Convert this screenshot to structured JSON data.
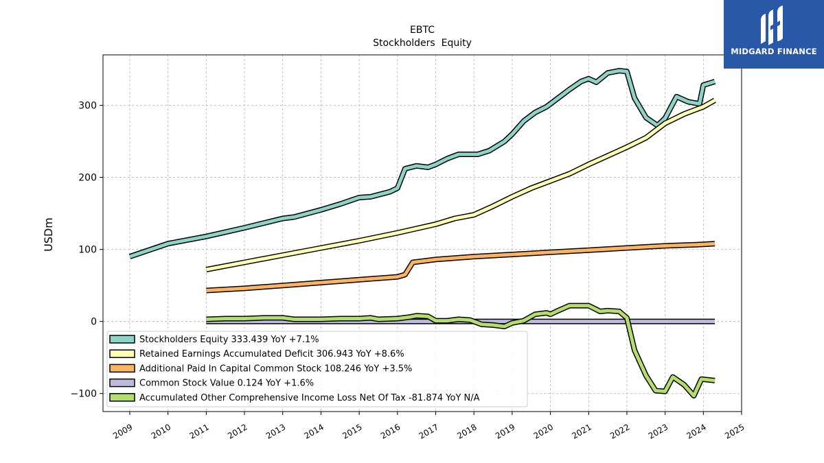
{
  "logo": {
    "text": "MIDGARD FINANCE",
    "icon": "midgard-m-logo-icon",
    "color": "#2a58a8"
  },
  "chart_data": {
    "type": "line",
    "title": "EBTC",
    "subtitle": "Stockholders  Equity",
    "ylabel": "USDm",
    "xlabel": "",
    "xlim": [
      2008.3,
      2025.0
    ],
    "ylim": [
      -125,
      370
    ],
    "x_ticks": [
      "2009",
      "2010",
      "2011",
      "2012",
      "2013",
      "2014",
      "2015",
      "2016",
      "2017",
      "2018",
      "2019",
      "2020",
      "2021",
      "2022",
      "2023",
      "2024",
      "2025"
    ],
    "y_ticks": [
      -100,
      0,
      100,
      200,
      300
    ],
    "y_tick_labels": [
      "−100",
      "0",
      "100",
      "200",
      "300"
    ],
    "grid": true,
    "legend_position": "lower-left",
    "series": [
      {
        "name": "Stockholders Equity",
        "legend": "Stockholders Equity  333.439 YoY +7.1%",
        "color": "#8dd3c7",
        "points": [
          [
            2009.0,
            90
          ],
          [
            2010.0,
            108
          ],
          [
            2011.0,
            118
          ],
          [
            2012.0,
            130
          ],
          [
            2013.0,
            143
          ],
          [
            2013.3,
            145
          ],
          [
            2014.0,
            155
          ],
          [
            2014.5,
            163
          ],
          [
            2015.0,
            172
          ],
          [
            2015.3,
            173
          ],
          [
            2015.8,
            180
          ],
          [
            2016.0,
            185
          ],
          [
            2016.2,
            212
          ],
          [
            2016.5,
            216
          ],
          [
            2016.8,
            214
          ],
          [
            2017.0,
            218
          ],
          [
            2017.3,
            226
          ],
          [
            2017.6,
            232
          ],
          [
            2017.9,
            232
          ],
          [
            2018.1,
            232
          ],
          [
            2018.4,
            237
          ],
          [
            2018.8,
            250
          ],
          [
            2019.0,
            260
          ],
          [
            2019.3,
            278
          ],
          [
            2019.6,
            290
          ],
          [
            2019.9,
            298
          ],
          [
            2020.2,
            310
          ],
          [
            2020.5,
            322
          ],
          [
            2020.8,
            333
          ],
          [
            2021.0,
            337
          ],
          [
            2021.2,
            332
          ],
          [
            2021.5,
            345
          ],
          [
            2021.8,
            348
          ],
          [
            2022.0,
            347
          ],
          [
            2022.2,
            310
          ],
          [
            2022.5,
            283
          ],
          [
            2022.8,
            272
          ],
          [
            2023.0,
            282
          ],
          [
            2023.3,
            312
          ],
          [
            2023.6,
            305
          ],
          [
            2023.9,
            302
          ],
          [
            2024.0,
            328
          ],
          [
            2024.3,
            333
          ]
        ]
      },
      {
        "name": "Retained Earnings Accumulated Deficit",
        "legend": "Retained Earnings Accumulated Deficit  306.943 YoY +8.6%",
        "color": "#ffffb3",
        "points": [
          [
            2011.0,
            72
          ],
          [
            2012.0,
            82
          ],
          [
            2013.0,
            92
          ],
          [
            2014.0,
            102
          ],
          [
            2015.0,
            112
          ],
          [
            2016.0,
            123
          ],
          [
            2017.0,
            135
          ],
          [
            2017.5,
            143
          ],
          [
            2018.0,
            148
          ],
          [
            2018.5,
            160
          ],
          [
            2019.0,
            173
          ],
          [
            2019.5,
            185
          ],
          [
            2020.0,
            195
          ],
          [
            2020.5,
            205
          ],
          [
            2021.0,
            218
          ],
          [
            2021.5,
            230
          ],
          [
            2022.0,
            242
          ],
          [
            2022.5,
            255
          ],
          [
            2023.0,
            275
          ],
          [
            2023.5,
            288
          ],
          [
            2024.0,
            298
          ],
          [
            2024.3,
            307
          ]
        ]
      },
      {
        "name": "Additional Paid In Capital Common Stock",
        "legend": "Additional Paid In Capital Common Stock  108.246 YoY +3.5%",
        "color": "#fdb462",
        "points": [
          [
            2011.0,
            43
          ],
          [
            2012.0,
            46
          ],
          [
            2013.0,
            50
          ],
          [
            2014.0,
            54
          ],
          [
            2015.0,
            58
          ],
          [
            2016.0,
            62
          ],
          [
            2016.2,
            65
          ],
          [
            2016.4,
            82
          ],
          [
            2017.0,
            86
          ],
          [
            2018.0,
            90
          ],
          [
            2019.0,
            93
          ],
          [
            2020.0,
            96
          ],
          [
            2021.0,
            99
          ],
          [
            2022.0,
            102
          ],
          [
            2023.0,
            105
          ],
          [
            2024.0,
            107
          ],
          [
            2024.3,
            108
          ]
        ]
      },
      {
        "name": "Common Stock Value",
        "legend": "Common Stock Value  0.124 YoY +1.6%",
        "color": "#bebada",
        "points": [
          [
            2011.0,
            0.1
          ],
          [
            2024.3,
            0.124
          ]
        ]
      },
      {
        "name": "Accumulated Other Comprehensive Income Loss Net Of Tax",
        "legend": "Accumulated Other Comprehensive Income Loss Net Of Tax  -81.874 YoY N/A",
        "color": "#b3de69",
        "points": [
          [
            2011.0,
            3
          ],
          [
            2011.5,
            4
          ],
          [
            2012.0,
            4
          ],
          [
            2012.5,
            5
          ],
          [
            2013.0,
            5
          ],
          [
            2013.3,
            3
          ],
          [
            2013.6,
            3
          ],
          [
            2014.0,
            3
          ],
          [
            2014.5,
            4
          ],
          [
            2015.0,
            4
          ],
          [
            2015.3,
            5
          ],
          [
            2015.5,
            3
          ],
          [
            2016.0,
            4
          ],
          [
            2016.3,
            6
          ],
          [
            2016.5,
            8
          ],
          [
            2016.8,
            7
          ],
          [
            2017.0,
            1
          ],
          [
            2017.3,
            1
          ],
          [
            2017.6,
            3
          ],
          [
            2017.9,
            2
          ],
          [
            2018.0,
            0
          ],
          [
            2018.2,
            -4
          ],
          [
            2018.5,
            -5
          ],
          [
            2018.8,
            -7
          ],
          [
            2019.0,
            -2
          ],
          [
            2019.3,
            1
          ],
          [
            2019.6,
            10
          ],
          [
            2019.9,
            12
          ],
          [
            2020.0,
            10
          ],
          [
            2020.2,
            15
          ],
          [
            2020.5,
            22
          ],
          [
            2020.8,
            22
          ],
          [
            2021.0,
            22
          ],
          [
            2021.3,
            14
          ],
          [
            2021.5,
            15
          ],
          [
            2021.8,
            14
          ],
          [
            2022.0,
            5
          ],
          [
            2022.2,
            -40
          ],
          [
            2022.5,
            -75
          ],
          [
            2022.75,
            -96
          ],
          [
            2023.0,
            -97
          ],
          [
            2023.2,
            -77
          ],
          [
            2023.5,
            -88
          ],
          [
            2023.75,
            -103
          ],
          [
            2023.95,
            -80
          ],
          [
            2024.3,
            -82
          ]
        ]
      }
    ]
  }
}
